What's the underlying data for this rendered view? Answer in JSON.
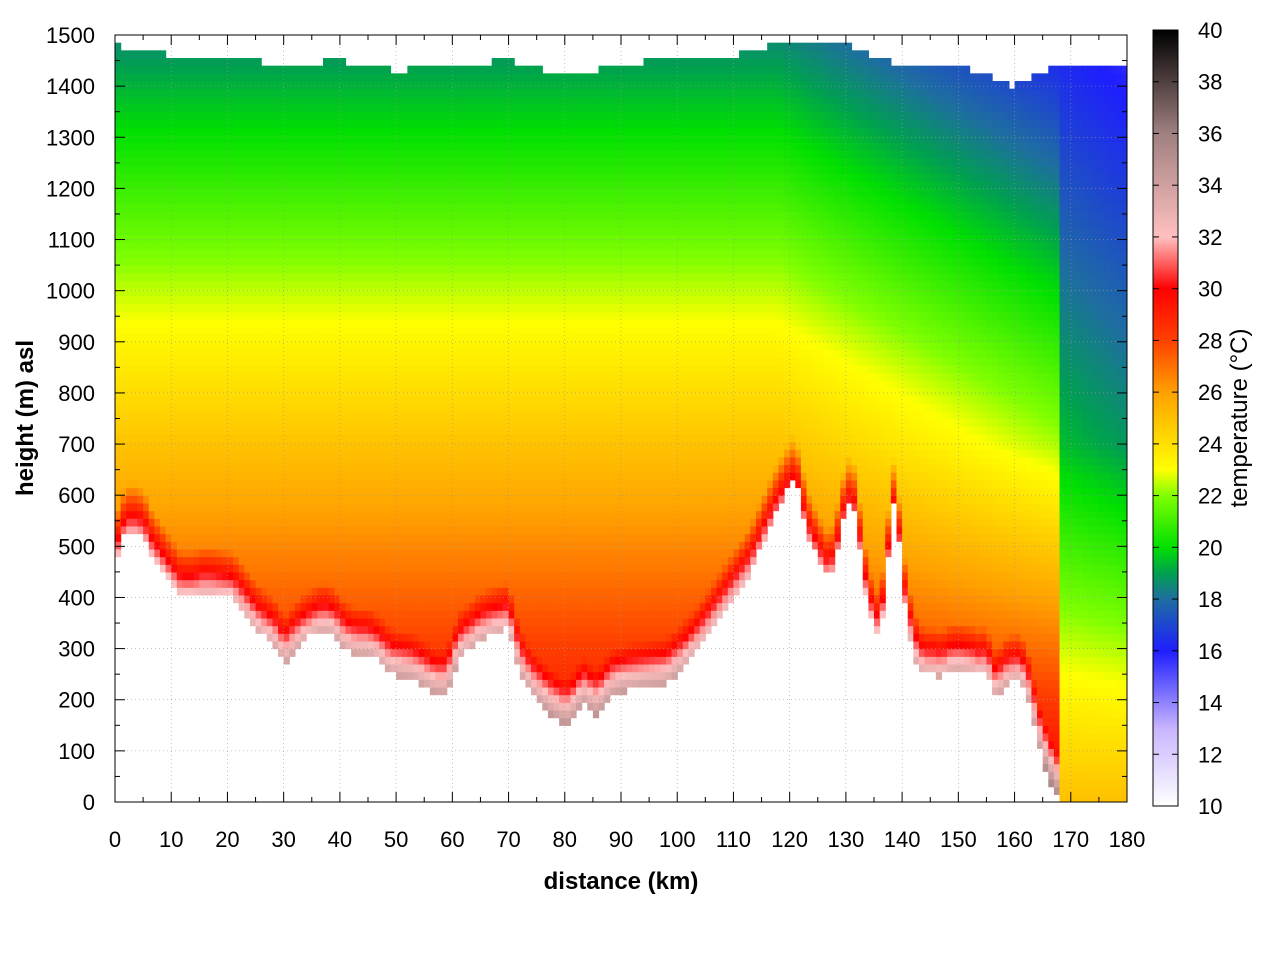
{
  "chart_data": {
    "type": "heatmap",
    "title": "",
    "xlabel": "distance (km)",
    "ylabel": "height (m) asl",
    "colorbar_label": "temperature (°C)",
    "xlim": [
      0,
      180
    ],
    "ylim": [
      0,
      1500
    ],
    "clim": [
      10,
      40
    ],
    "x_ticks": [
      0,
      10,
      20,
      30,
      40,
      50,
      60,
      70,
      80,
      90,
      100,
      110,
      120,
      130,
      140,
      150,
      160,
      170,
      180
    ],
    "y_ticks": [
      0,
      100,
      200,
      300,
      400,
      500,
      600,
      700,
      800,
      900,
      1000,
      1100,
      1200,
      1300,
      1400,
      1500
    ],
    "c_ticks": [
      10,
      12,
      14,
      16,
      18,
      20,
      22,
      24,
      26,
      28,
      30,
      32,
      34,
      36,
      38,
      40
    ],
    "grid": true,
    "colormap": [
      {
        "t": 10,
        "color": "#ffffff"
      },
      {
        "t": 13,
        "color": "#c8b4ff"
      },
      {
        "t": 16,
        "color": "#1e1eff"
      },
      {
        "t": 18,
        "color": "#1e6ea0"
      },
      {
        "t": 19,
        "color": "#00a050"
      },
      {
        "t": 20,
        "color": "#00e000"
      },
      {
        "t": 22,
        "color": "#80ff00"
      },
      {
        "t": 23,
        "color": "#ffff00"
      },
      {
        "t": 26,
        "color": "#ffa000"
      },
      {
        "t": 28,
        "color": "#ff4000"
      },
      {
        "t": 30,
        "color": "#ff0000"
      },
      {
        "t": 32,
        "color": "#ffc0c0"
      },
      {
        "t": 36,
        "color": "#a08080"
      },
      {
        "t": 40,
        "color": "#000000"
      }
    ],
    "ground_profile": {
      "distance_km": [
        0,
        1,
        2,
        3,
        4,
        5,
        6,
        7,
        8,
        9,
        10,
        11,
        12,
        13,
        14,
        15,
        17,
        19,
        21,
        23,
        25,
        27,
        29,
        30,
        32,
        34,
        37,
        39,
        41,
        43,
        45,
        47,
        49,
        51,
        53,
        55,
        57,
        59,
        61,
        63,
        65,
        67,
        70,
        72,
        74,
        76,
        78,
        80,
        81,
        82,
        83,
        84,
        85,
        86,
        87,
        88,
        90,
        92,
        95,
        98,
        101,
        104,
        107,
        110,
        113,
        116,
        118,
        120,
        121,
        122,
        123,
        124,
        125,
        126,
        127,
        128,
        129,
        130,
        131,
        132,
        133,
        134,
        135,
        136,
        137,
        138,
        139,
        140,
        141,
        142,
        143,
        144,
        145,
        146,
        147,
        148,
        149,
        150,
        151,
        152,
        153,
        154,
        155,
        156,
        157,
        158,
        159,
        160,
        161,
        162,
        163,
        164,
        165,
        166,
        167,
        168
      ],
      "height_m": [
        460,
        510,
        530,
        535,
        530,
        525,
        500,
        470,
        465,
        440,
        430,
        410,
        400,
        405,
        400,
        410,
        410,
        405,
        400,
        370,
        340,
        320,
        300,
        270,
        300,
        320,
        340,
        330,
        300,
        290,
        290,
        275,
        250,
        245,
        240,
        225,
        210,
        210,
        280,
        300,
        320,
        330,
        340,
        250,
        210,
        185,
        165,
        150,
        155,
        170,
        190,
        190,
        170,
        175,
        185,
        205,
        215,
        220,
        225,
        230,
        260,
        300,
        350,
        400,
        450,
        530,
        580,
        620,
        630,
        590,
        530,
        500,
        480,
        450,
        440,
        460,
        530,
        580,
        590,
        560,
        440,
        380,
        330,
        320,
        400,
        560,
        600,
        420,
        350,
        290,
        260,
        250,
        250,
        250,
        245,
        255,
        260,
        260,
        260,
        255,
        255,
        245,
        260,
        215,
        205,
        230,
        235,
        240,
        240,
        220,
        180,
        120,
        80,
        50,
        20,
        0
      ]
    },
    "top_edge": {
      "distance_km": [
        0,
        10,
        20,
        30,
        40,
        50,
        60,
        70,
        80,
        90,
        100,
        110,
        120,
        130,
        140,
        150,
        160,
        168,
        180
      ],
      "height_m": [
        1480,
        1460,
        1460,
        1440,
        1450,
        1430,
        1440,
        1450,
        1420,
        1440,
        1460,
        1460,
        1490,
        1480,
        1440,
        1440,
        1400,
        1440,
        1440
      ]
    }
  }
}
